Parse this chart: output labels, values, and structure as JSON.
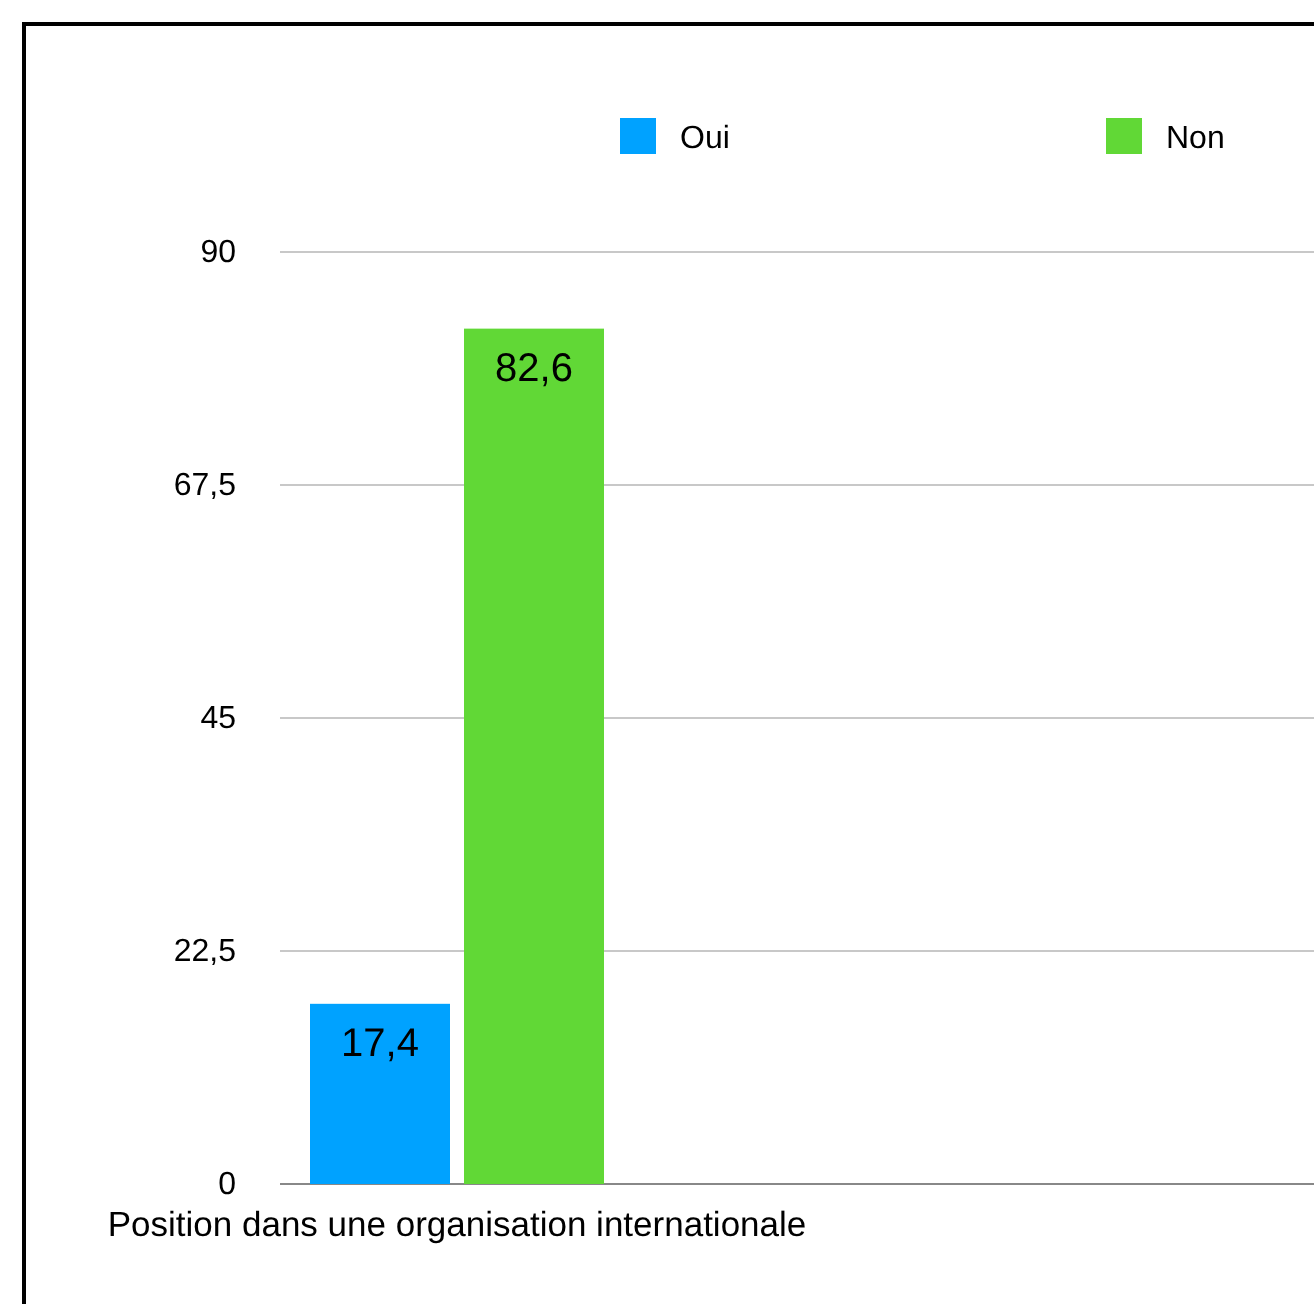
{
  "chart_data": {
    "type": "bar",
    "categories": [
      "Position dans une organisation internationale"
    ],
    "series": [
      {
        "name": "Oui",
        "color": "#00a2ff",
        "values": [
          17.4
        ],
        "value_labels": [
          "17,4"
        ]
      },
      {
        "name": "Non",
        "color": "#61d836",
        "values": [
          82.6
        ],
        "value_labels": [
          "82,6"
        ]
      }
    ],
    "ylim": [
      0,
      90
    ],
    "yticks": [
      0,
      {
        "value": 22.5,
        "label": "22,5"
      },
      45,
      {
        "value": 67.5,
        "label": "67,5"
      },
      90
    ],
    "grid": "y",
    "legend": "top"
  }
}
